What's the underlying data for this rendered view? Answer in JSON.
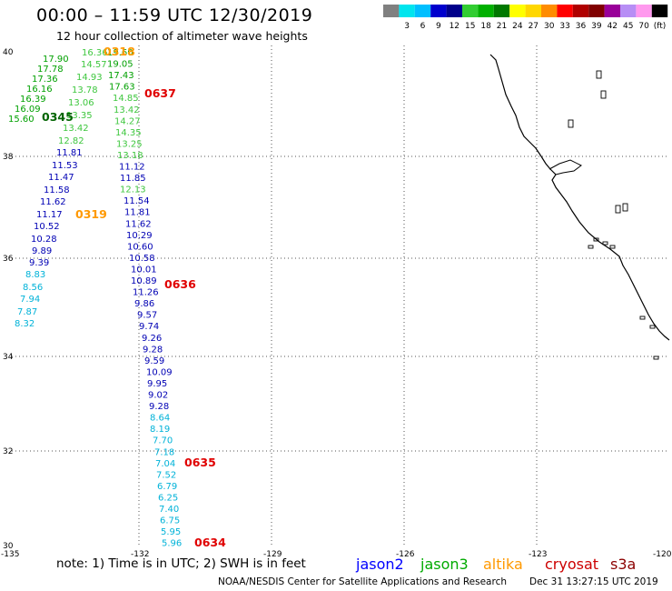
{
  "header": {
    "title": "00:00 – 11:59 UTC 12/30/2019",
    "subtitle": "12 hour collection of altimeter wave heights"
  },
  "colorbar": {
    "segments": [
      {
        "color": "#808080",
        "label": ""
      },
      {
        "color": "#00e5ee",
        "label": "3"
      },
      {
        "color": "#00bfff",
        "label": "6"
      },
      {
        "color": "#0000cd",
        "label": "9"
      },
      {
        "color": "#00008b",
        "label": "12"
      },
      {
        "color": "#32cd32",
        "label": "15"
      },
      {
        "color": "#00b000",
        "label": "18"
      },
      {
        "color": "#007800",
        "label": "21"
      },
      {
        "color": "#ffff00",
        "label": "24"
      },
      {
        "color": "#ffd700",
        "label": "27"
      },
      {
        "color": "#ff8c00",
        "label": "30"
      },
      {
        "color": "#ff0000",
        "label": "33"
      },
      {
        "color": "#b00000",
        "label": "36"
      },
      {
        "color": "#800000",
        "label": "39"
      },
      {
        "color": "#990099",
        "label": "42"
      },
      {
        "color": "#b78ef5",
        "label": "45"
      },
      {
        "color": "#ff99ee",
        "label": "70"
      },
      {
        "color": "#000000",
        "label": "(ft)"
      }
    ]
  },
  "axes": {
    "lon_ticks": [
      "-135",
      "-132",
      "-129",
      "-126",
      "-123",
      "-120"
    ],
    "lat_ticks": [
      "40",
      "38",
      "36",
      "34",
      "32",
      "30"
    ]
  },
  "colors": {
    "cyan": "#00b2d8",
    "blue": "#0000b4",
    "green": "#3fc73f",
    "dkgreen": "#00a000",
    "orange": "#ff9900",
    "red": "#e00000",
    "darkgreen_label": "#006400"
  },
  "track_west": {
    "values": [
      {
        "v": "17.90",
        "c": "dkgreen"
      },
      {
        "v": "17.78",
        "c": "dkgreen"
      },
      {
        "v": "17.36",
        "c": "dkgreen"
      },
      {
        "v": "16.16",
        "c": "dkgreen"
      },
      {
        "v": "16.39",
        "c": "dkgreen"
      },
      {
        "v": "16.09",
        "c": "dkgreen"
      },
      {
        "v": "15.60",
        "c": "dkgreen"
      },
      {
        "v": "11.81",
        "c": "blue"
      },
      {
        "v": "11.53",
        "c": "blue"
      },
      {
        "v": "11.47",
        "c": "blue"
      },
      {
        "v": "11.58",
        "c": "blue"
      },
      {
        "v": "11.62",
        "c": "blue"
      },
      {
        "v": "11.17",
        "c": "blue"
      },
      {
        "v": "10.52",
        "c": "blue"
      },
      {
        "v": "10.28",
        "c": "blue"
      },
      {
        "v": "9.89",
        "c": "blue"
      },
      {
        "v": "9.39",
        "c": "blue"
      },
      {
        "v": "8.83",
        "c": "cyan"
      },
      {
        "v": "8.56",
        "c": "cyan"
      },
      {
        "v": "7.94",
        "c": "cyan"
      },
      {
        "v": "7.87",
        "c": "cyan"
      },
      {
        "v": "8.32",
        "c": "cyan"
      }
    ]
  },
  "track_mid": {
    "values": [
      {
        "v": "16.36",
        "c": "green"
      },
      {
        "v": "14.57",
        "c": "green"
      },
      {
        "v": "14.93",
        "c": "green"
      },
      {
        "v": "13.78",
        "c": "green"
      },
      {
        "v": "13.06",
        "c": "green"
      },
      {
        "v": "13.35",
        "c": "green"
      },
      {
        "v": "13.42",
        "c": "green"
      },
      {
        "v": "12.82",
        "c": "green"
      }
    ]
  },
  "track_east": {
    "values": [
      {
        "v": "19.60",
        "c": "dkgreen"
      },
      {
        "v": "19.05",
        "c": "dkgreen"
      },
      {
        "v": "17.43",
        "c": "dkgreen"
      },
      {
        "v": "17.63",
        "c": "dkgreen"
      },
      {
        "v": "14.85",
        "c": "green"
      },
      {
        "v": "13.42",
        "c": "green"
      },
      {
        "v": "14.27",
        "c": "green"
      },
      {
        "v": "14.35",
        "c": "green"
      },
      {
        "v": "13.25",
        "c": "green"
      },
      {
        "v": "13.18",
        "c": "green"
      },
      {
        "v": "11.12",
        "c": "blue"
      },
      {
        "v": "11.85",
        "c": "blue"
      },
      {
        "v": "12.13",
        "c": "green"
      },
      {
        "v": "11.54",
        "c": "blue"
      },
      {
        "v": "11.81",
        "c": "blue"
      },
      {
        "v": "11.62",
        "c": "blue"
      },
      {
        "v": "10.29",
        "c": "blue"
      },
      {
        "v": "10.60",
        "c": "blue"
      },
      {
        "v": "10.58",
        "c": "blue"
      },
      {
        "v": "10.01",
        "c": "blue"
      },
      {
        "v": "10.89",
        "c": "blue"
      },
      {
        "v": "11.26",
        "c": "blue"
      },
      {
        "v": "9.86",
        "c": "blue"
      },
      {
        "v": "9.57",
        "c": "blue"
      },
      {
        "v": "9.74",
        "c": "blue"
      },
      {
        "v": "9.26",
        "c": "blue"
      },
      {
        "v": "9.28",
        "c": "blue"
      },
      {
        "v": "9.59",
        "c": "blue"
      },
      {
        "v": "10.09",
        "c": "blue"
      },
      {
        "v": "9.95",
        "c": "blue"
      },
      {
        "v": "9.02",
        "c": "blue"
      },
      {
        "v": "9.28",
        "c": "blue"
      },
      {
        "v": "8.64",
        "c": "cyan"
      },
      {
        "v": "8.19",
        "c": "cyan"
      },
      {
        "v": "7.70",
        "c": "cyan"
      },
      {
        "v": "7.18",
        "c": "cyan"
      },
      {
        "v": "7.04",
        "c": "cyan"
      },
      {
        "v": "7.52",
        "c": "cyan"
      },
      {
        "v": "6.79",
        "c": "cyan"
      },
      {
        "v": "6.25",
        "c": "cyan"
      },
      {
        "v": "7.40",
        "c": "cyan"
      },
      {
        "v": "6.75",
        "c": "cyan"
      },
      {
        "v": "5.95",
        "c": "cyan"
      },
      {
        "v": "5.96",
        "c": "cyan"
      }
    ]
  },
  "pass_times": [
    {
      "label": "0318",
      "c": "orange"
    },
    {
      "label": "0637",
      "c": "red"
    },
    {
      "label": "0345",
      "c": "darkgreen_label"
    },
    {
      "label": "0319",
      "c": "orange"
    },
    {
      "label": "0636",
      "c": "red"
    },
    {
      "label": "0635",
      "c": "red"
    },
    {
      "label": "0634",
      "c": "red"
    }
  ],
  "footer": {
    "note": "note: 1) Time is in UTC; 2) SWH is in feet",
    "satellites": [
      {
        "name": "jason2",
        "color": "#0000ff"
      },
      {
        "name": "jason3",
        "color": "#00aa00"
      },
      {
        "name": "altika",
        "color": "#ff9900"
      },
      {
        "name": "cryosat",
        "color": "#cc0000"
      },
      {
        "name": "s3a",
        "color": "#8b0000"
      }
    ],
    "credit": "NOAA/NESDIS Center for Satellite Applications and Research",
    "timestamp": "Dec 31 13:27:15 UTC 2019"
  }
}
